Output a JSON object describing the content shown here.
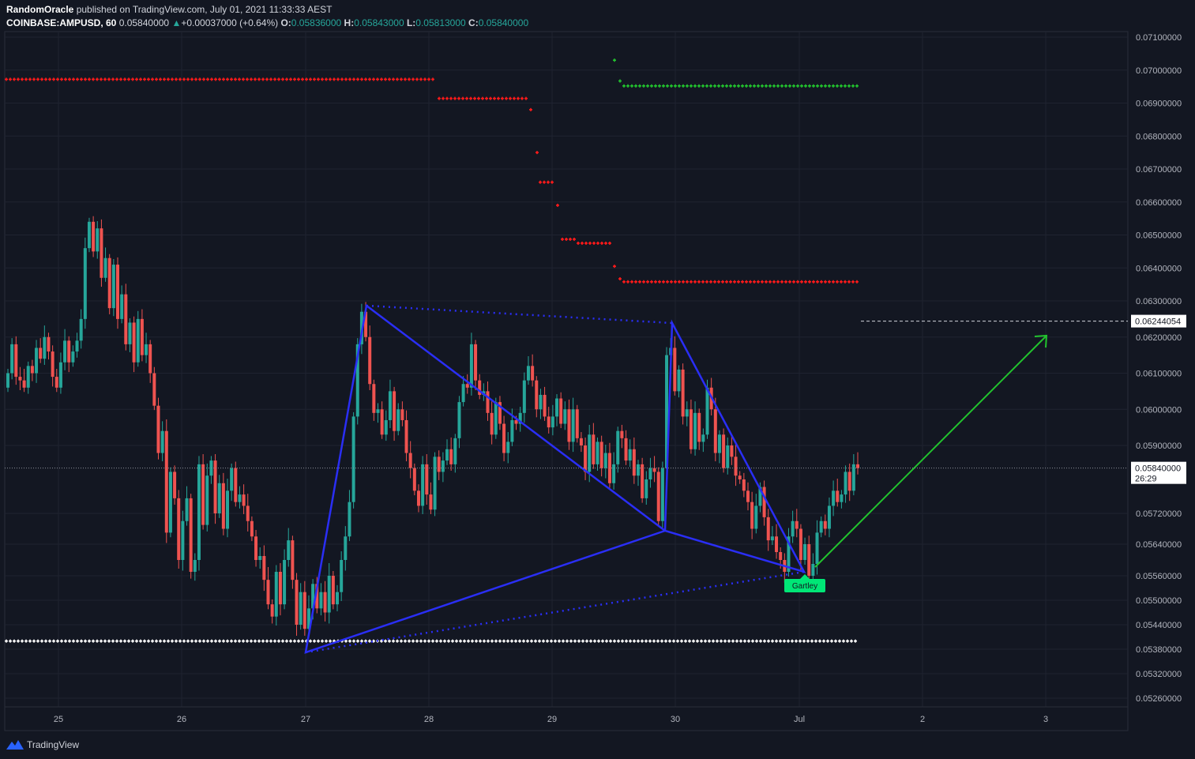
{
  "header": {
    "author": "RandomOracle",
    "published_text": "published on TradingView.com, July 01, 2021 11:33:33 AEST",
    "symbol": "COINBASE:AMPUSD, 60",
    "last": "0.05840000",
    "change_arrow": "▲",
    "change": "+0.00037000 (+0.64%)",
    "open_label": "O:",
    "open": "0.05836000",
    "high_label": "H:",
    "high": "0.05843000",
    "low_label": "L:",
    "low": "0.05813000",
    "close_label": "C:",
    "close": "0.05840000"
  },
  "footer": {
    "brand": "TradingView",
    "logo_icon": "tradingview-logo-icon"
  },
  "colors": {
    "background": "#131722",
    "up": "#26a69a",
    "down": "#ef5350",
    "pattern": "#2a2ef5",
    "target_arrow": "#22c32e",
    "resistance": "#ff1a1a",
    "support": "#ffffff",
    "green_marks": "#22c32e",
    "gartley_badge": "#00e676"
  },
  "chart_data": {
    "type": "candlestick",
    "y_ticks": [
      "0.07100000",
      "0.07000000",
      "0.06900000",
      "0.06800000",
      "0.06700000",
      "0.06600000",
      "0.06500000",
      "0.06400000",
      "0.06300000",
      "0.06200000",
      "0.06100000",
      "0.06000000",
      "0.05900000",
      "0.05720000",
      "0.05640000",
      "0.05560000",
      "0.05500000",
      "0.05440000",
      "0.05380000",
      "0.05320000",
      "0.05260000"
    ],
    "x_ticks": [
      "25",
      "26",
      "27",
      "28",
      "29",
      "30",
      "Jul",
      "2",
      "3"
    ],
    "last_price_label": "0.05840000",
    "countdown": "26:29",
    "target_price_label": "0.06244054",
    "pattern_label": "Gartley",
    "candles_close": [
      0.061,
      0.0618,
      0.0609,
      0.0608,
      0.0606,
      0.0612,
      0.061,
      0.0617,
      0.0614,
      0.062,
      0.0616,
      0.0609,
      0.0606,
      0.0613,
      0.0619,
      0.0613,
      0.0616,
      0.0619,
      0.0625,
      0.0646,
      0.0654,
      0.0645,
      0.0652,
      0.0637,
      0.0643,
      0.0628,
      0.0641,
      0.0625,
      0.0632,
      0.0618,
      0.0624,
      0.0613,
      0.0625,
      0.0615,
      0.0618,
      0.061,
      0.0601,
      0.0588,
      0.0594,
      0.0567,
      0.0583,
      0.0576,
      0.056,
      0.057,
      0.0576,
      0.0557,
      0.056,
      0.0585,
      0.0569,
      0.0582,
      0.0586,
      0.0572,
      0.058,
      0.0568,
      0.0578,
      0.0584,
      0.0575,
      0.0577,
      0.0574,
      0.057,
      0.0566,
      0.056,
      0.0561,
      0.0555,
      0.0549,
      0.0546,
      0.0557,
      0.0549,
      0.056,
      0.0565,
      0.0555,
      0.0544,
      0.0552,
      0.0543,
      0.0548,
      0.0554,
      0.0548,
      0.0552,
      0.0547,
      0.0556,
      0.0549,
      0.0552,
      0.056,
      0.0566,
      0.0575,
      0.0598,
      0.0618,
      0.0627,
      0.062,
      0.0607,
      0.0599,
      0.06,
      0.0593,
      0.0597,
      0.0605,
      0.0594,
      0.06,
      0.0597,
      0.0588,
      0.0584,
      0.0578,
      0.0574,
      0.0585,
      0.0577,
      0.0573,
      0.0587,
      0.0583,
      0.0586,
      0.0589,
      0.0585,
      0.0592,
      0.0602,
      0.0607,
      0.0606,
      0.0618,
      0.0608,
      0.0604,
      0.0605,
      0.0599,
      0.0593,
      0.0602,
      0.0596,
      0.0588,
      0.0591,
      0.0597,
      0.0596,
      0.0599,
      0.0608,
      0.0612,
      0.0608,
      0.06,
      0.0604,
      0.0598,
      0.0595,
      0.0598,
      0.0603,
      0.0596,
      0.06,
      0.0591,
      0.06,
      0.0592,
      0.059,
      0.0583,
      0.0593,
      0.0585,
      0.0591,
      0.0584,
      0.0588,
      0.058,
      0.0585,
      0.0594,
      0.0592,
      0.0586,
      0.0589,
      0.0582,
      0.0585,
      0.0576,
      0.0581,
      0.0584,
      0.0583,
      0.057,
      0.0584,
      0.0615,
      0.0617,
      0.0605,
      0.0611,
      0.0598,
      0.06,
      0.0589,
      0.0599,
      0.0591,
      0.0593,
      0.0606,
      0.06,
      0.0588,
      0.0593,
      0.0584,
      0.059,
      0.0587,
      0.0582,
      0.0581,
      0.0578,
      0.0575,
      0.0568,
      0.0574,
      0.0579,
      0.0571,
      0.0565,
      0.0566,
      0.0562,
      0.056,
      0.0557,
      0.0566,
      0.057,
      0.0568,
      0.056,
      0.0564,
      0.0556,
      0.0559,
      0.0567,
      0.057,
      0.0568,
      0.0574,
      0.0578,
      0.0575,
      0.0577,
      0.0583,
      0.0578,
      0.0585,
      0.0584
    ]
  }
}
